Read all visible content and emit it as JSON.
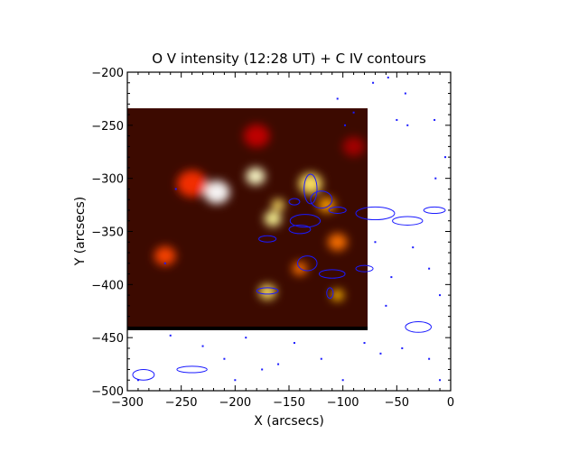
{
  "chart_data": {
    "type": "heatmap",
    "title": "O V intensity (12:28 UT) + C IV contours",
    "xlabel": "X (arcsecs)",
    "ylabel": "Y (arcsecs)",
    "xlim": [
      -300,
      0
    ],
    "ylim": [
      -500,
      -200
    ],
    "xticks": [
      -300,
      -250,
      -200,
      -150,
      -100,
      -50,
      0
    ],
    "yticks": [
      -500,
      -450,
      -400,
      -350,
      -300,
      -250,
      -200
    ],
    "xtick_labels": [
      "−300",
      "−250",
      "−200",
      "−150",
      "−100",
      "−50",
      "0"
    ],
    "ytick_labels": [
      "−500",
      "−450",
      "−400",
      "−350",
      "−300",
      "−250",
      "−200"
    ],
    "image_extent": {
      "x": [
        -300,
        -77
      ],
      "y": [
        -443,
        -234
      ]
    },
    "colormap": "heat (black-red-orange-white)",
    "intensity_features": [
      {
        "x": -217,
        "y": -313,
        "r": 12,
        "value": 1.0
      },
      {
        "x": -181,
        "y": -298,
        "r": 9,
        "value": 0.95
      },
      {
        "x": -165,
        "y": -338,
        "r": 8,
        "value": 0.9
      },
      {
        "x": -160,
        "y": -325,
        "r": 6,
        "value": 0.85
      },
      {
        "x": -130,
        "y": -305,
        "r": 11,
        "value": 0.85
      },
      {
        "x": -115,
        "y": -325,
        "r": 8,
        "value": 0.7
      },
      {
        "x": -105,
        "y": -360,
        "r": 9,
        "value": 0.6
      },
      {
        "x": -170,
        "y": -407,
        "r": 8,
        "value": 0.85
      },
      {
        "x": -140,
        "y": -385,
        "r": 7,
        "value": 0.6
      },
      {
        "x": -105,
        "y": -410,
        "r": 6,
        "value": 0.75
      },
      {
        "x": -265,
        "y": -373,
        "r": 10,
        "value": 0.5
      },
      {
        "x": -240,
        "y": -305,
        "r": 14,
        "value": 0.45
      },
      {
        "x": -180,
        "y": -260,
        "r": 12,
        "value": 0.35
      },
      {
        "x": -90,
        "y": -270,
        "r": 10,
        "value": 0.3
      }
    ],
    "contour_color": "#1a1aff",
    "contours": [
      {
        "x": -130,
        "y": -310,
        "rx": 6,
        "ry": 14
      },
      {
        "x": -120,
        "y": -320,
        "rx": 10,
        "ry": 8
      },
      {
        "x": -135,
        "y": -340,
        "rx": 14,
        "ry": 6
      },
      {
        "x": -140,
        "y": -348,
        "rx": 10,
        "ry": 4
      },
      {
        "x": -170,
        "y": -357,
        "rx": 8,
        "ry": 3
      },
      {
        "x": -133,
        "y": -380,
        "rx": 9,
        "ry": 7
      },
      {
        "x": -110,
        "y": -390,
        "rx": 12,
        "ry": 4
      },
      {
        "x": -80,
        "y": -385,
        "rx": 8,
        "ry": 3
      },
      {
        "x": -170,
        "y": -406,
        "rx": 10,
        "ry": 3
      },
      {
        "x": -112,
        "y": -408,
        "rx": 3,
        "ry": 5
      },
      {
        "x": -70,
        "y": -333,
        "rx": 18,
        "ry": 6
      },
      {
        "x": -40,
        "y": -340,
        "rx": 14,
        "ry": 4
      },
      {
        "x": -15,
        "y": -330,
        "rx": 10,
        "ry": 3
      },
      {
        "x": -30,
        "y": -440,
        "rx": 12,
        "ry": 5
      },
      {
        "x": -285,
        "y": -485,
        "rx": 10,
        "ry": 5
      },
      {
        "x": -240,
        "y": -480,
        "rx": 14,
        "ry": 3
      },
      {
        "x": -105,
        "y": -330,
        "rx": 8,
        "ry": 3
      },
      {
        "x": -145,
        "y": -322,
        "rx": 5,
        "ry": 3
      }
    ],
    "contour_dots": [
      [
        -105,
        -225
      ],
      [
        -90,
        -238
      ],
      [
        -98,
        -250
      ],
      [
        -72,
        -210
      ],
      [
        -58,
        -205
      ],
      [
        -42,
        -220
      ],
      [
        -15,
        -245
      ],
      [
        -40,
        -250
      ],
      [
        -5,
        -280
      ],
      [
        -14,
        -300
      ],
      [
        -20,
        -385
      ],
      [
        -10,
        -410
      ],
      [
        -55,
        -393
      ],
      [
        -60,
        -420
      ],
      [
        -45,
        -460
      ],
      [
        -65,
        -465
      ],
      [
        -20,
        -470
      ],
      [
        -10,
        -490
      ],
      [
        -160,
        -475
      ],
      [
        -230,
        -458
      ],
      [
        -260,
        -448
      ],
      [
        -210,
        -470
      ],
      [
        -175,
        -480
      ],
      [
        -120,
        -470
      ],
      [
        -100,
        -490
      ],
      [
        -80,
        -455
      ],
      [
        -255,
        -310
      ],
      [
        -265,
        -380
      ],
      [
        -190,
        -450
      ],
      [
        -145,
        -455
      ],
      [
        -50,
        -245
      ],
      [
        -35,
        -365
      ],
      [
        -70,
        -360
      ],
      [
        -290,
        -490
      ],
      [
        -200,
        -490
      ]
    ]
  }
}
